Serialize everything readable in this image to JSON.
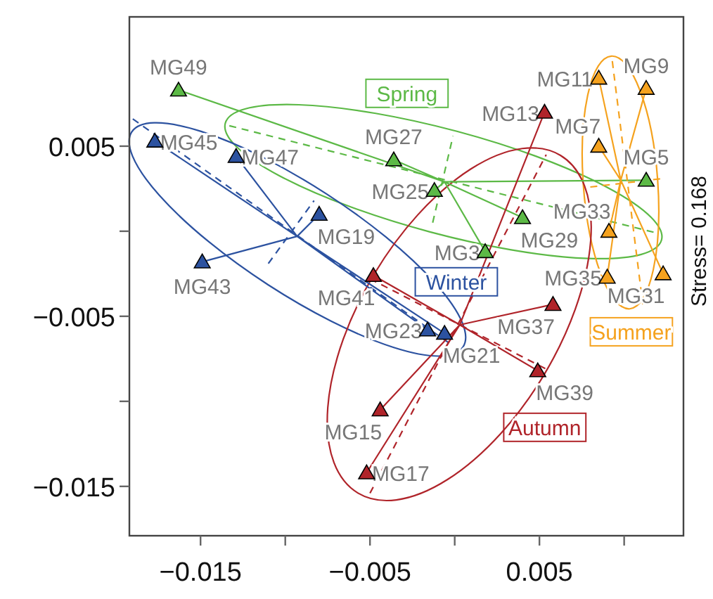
{
  "chart_data": {
    "type": "scatter",
    "legend": false,
    "grid": false,
    "xlim": [
      -0.0192,
      0.0135
    ],
    "ylim": [
      -0.0179,
      0.0126
    ],
    "xticks": [
      {
        "value": -0.015,
        "label": "−0.015"
      },
      {
        "value": -0.01,
        "label": null
      },
      {
        "value": -0.005,
        "label": "−0.005"
      },
      {
        "value": 0,
        "label": null
      },
      0.005,
      {
        "value": 0.01,
        "label": null
      }
    ],
    "yticks": [
      {
        "value": -0.015,
        "label": "−0.015"
      },
      {
        "value": -0.01,
        "label": null
      },
      {
        "value": -0.005,
        "label": "−0.005"
      },
      {
        "value": 0,
        "label": null
      },
      0.005
    ],
    "series": [
      {
        "name": "Spring",
        "marker": "triangle",
        "color": "#5cb946",
        "x": [
          -0.0163,
          -0.0036,
          -0.0012,
          0.004,
          0.0018,
          0.0113
        ],
        "values": [
          0.0083,
          0.0042,
          0.0024,
          0.0008,
          -0.0012,
          0.003
        ]
      },
      {
        "type": "line",
        "color": "#5cb946",
        "x": [
          -0.0006,
          -0.0163,
          -0.0006,
          -0.0036,
          -0.0006,
          -0.0012,
          -0.0006,
          0.004,
          -0.0006,
          0.0018,
          -0.0006,
          0.0113
        ],
        "values": [
          0.0029,
          0.0083,
          0.0029,
          0.0042,
          0.0029,
          0.0024,
          0.0029,
          0.0008,
          0.0029,
          -0.0012,
          0.0029,
          0.003
        ]
      },
      {
        "type": "line",
        "color": "#5cb946",
        "line_style": "dashed",
        "x": [
          -0.0133,
          0.0119
        ],
        "values": [
          0.0062,
          -0.0001
        ]
      },
      {
        "type": "line",
        "color": "#5cb946",
        "line_style": "dashed",
        "x": [
          -0.0013,
          -0.0001
        ],
        "values": [
          0.0005,
          0.0056
        ]
      },
      {
        "name": "Winter",
        "marker": "triangle",
        "color": "#2c52a0",
        "x": [
          -0.0177,
          -0.0129,
          -0.008,
          -0.0149,
          -0.0016,
          -0.0006
        ],
        "values": [
          0.0053,
          0.0044,
          0.001,
          -0.0018,
          -0.0058,
          -0.006
        ]
      },
      {
        "type": "line",
        "color": "#2c52a0",
        "x": [
          -0.0093,
          -0.0177,
          -0.0093,
          -0.0129,
          -0.0093,
          -0.008,
          -0.0093,
          -0.0149,
          -0.0093,
          -0.0016,
          -0.0093,
          -0.0006
        ],
        "values": [
          -0.0003,
          0.0053,
          -0.0003,
          0.0044,
          -0.0003,
          0.001,
          -0.0003,
          -0.0018,
          -0.0003,
          -0.0058,
          -0.0003,
          -0.006
        ]
      },
      {
        "type": "line",
        "color": "#2c52a0",
        "line_style": "dashed",
        "x": [
          -0.019,
          -0.0003
        ],
        "values": [
          0.0066,
          -0.0066
        ]
      },
      {
        "type": "line",
        "color": "#2c52a0",
        "line_style": "dashed",
        "x": [
          -0.011,
          -0.0083
        ],
        "values": [
          -0.0019,
          0.0018
        ]
      },
      {
        "name": "Summer",
        "marker": "triangle",
        "color": "#f5a21e",
        "x": [
          0.0085,
          0.0113,
          0.0085,
          0.0091,
          0.0123,
          0.009
        ],
        "values": [
          0.009,
          0.0084,
          0.005,
          0,
          -0.0025,
          -0.0027
        ]
      },
      {
        "type": "line",
        "color": "#f5a21e",
        "x": [
          0.0098,
          0.0085,
          0.0098,
          0.0113,
          0.0098,
          0.0085,
          0.0098,
          0.0091,
          0.0098,
          0.0123,
          0.0098,
          0.009
        ],
        "values": [
          0.003,
          0.009,
          0.003,
          0.0084,
          0.003,
          0.005,
          0.003,
          0,
          0.003,
          -0.0025,
          0.003,
          -0.0027
        ]
      },
      {
        "type": "line",
        "color": "#f5a21e",
        "line_style": "dashed",
        "x": [
          0.0093,
          0.0111
        ],
        "values": [
          0.01,
          -0.0043
        ]
      },
      {
        "type": "line",
        "color": "#f5a21e",
        "line_style": "dashed",
        "x": [
          0.008,
          0.0123
        ],
        "values": [
          0.0026,
          0.0031
        ]
      },
      {
        "name": "Autumn",
        "marker": "triangle",
        "color": "#b0242a",
        "x": [
          0.0053,
          -0.0048,
          0.0058,
          0.0049,
          -0.0044,
          -0.0052
        ],
        "values": [
          0.007,
          -0.0026,
          -0.0043,
          -0.0082,
          -0.0105,
          -0.0142
        ]
      },
      {
        "type": "line",
        "color": "#b0242a",
        "x": [
          0.0003,
          0.0053,
          0.0003,
          -0.0048,
          0.0003,
          0.0058,
          0.0003,
          0.0049,
          0.0003,
          -0.0044,
          0.0003,
          -0.0052
        ],
        "values": [
          -0.0055,
          0.007,
          -0.0055,
          -0.0026,
          -0.0055,
          -0.0043,
          -0.0055,
          -0.0082,
          -0.0055,
          -0.0105,
          -0.0055,
          -0.0142
        ]
      },
      {
        "type": "line",
        "color": "#b0242a",
        "line_style": "dashed",
        "x": [
          -0.005,
          0.0054
        ],
        "values": [
          -0.0154,
          0.0045
        ]
      },
      {
        "type": "line",
        "color": "#b0242a",
        "line_style": "dashed",
        "x": [
          -0.005,
          0.0054
        ],
        "values": [
          -0.0028,
          -0.0081
        ]
      }
    ],
    "annotations": [
      {
        "text": "MG49",
        "x": -0.0163,
        "y": 0.0083
      },
      {
        "text": "MG27",
        "x": -0.0036,
        "y": 0.0042
      },
      {
        "text": "MG25",
        "x": -0.0012,
        "y": 0.0024
      },
      {
        "text": "MG29",
        "x": 0.004,
        "y": 0.0008
      },
      {
        "text": "MG3",
        "x": 0.0018,
        "y": -0.0012
      },
      {
        "text": "MG5",
        "x": 0.0113,
        "y": 0.003
      },
      {
        "text": "MG45",
        "x": -0.0177,
        "y": 0.0053
      },
      {
        "text": "MG47",
        "x": -0.0129,
        "y": 0.0044
      },
      {
        "text": "MG19",
        "x": -0.008,
        "y": 0.001
      },
      {
        "text": "MG43",
        "x": -0.0149,
        "y": -0.0018
      },
      {
        "text": "MG23",
        "x": -0.0016,
        "y": -0.0058
      },
      {
        "text": "MG21",
        "x": -0.0006,
        "y": -0.006
      },
      {
        "text": "MG11",
        "x": 0.0085,
        "y": 0.009
      },
      {
        "text": "MG9",
        "x": 0.0113,
        "y": 0.0084
      },
      {
        "text": "MG7",
        "x": 0.0085,
        "y": 0.005
      },
      {
        "text": "MG33",
        "x": 0.0091,
        "y": 0
      },
      {
        "text": "MG31",
        "x": 0.0123,
        "y": -0.0025
      },
      {
        "text": "MG35",
        "x": 0.009,
        "y": -0.0027
      },
      {
        "text": "MG13",
        "x": 0.0053,
        "y": 0.007
      },
      {
        "text": "MG41",
        "x": -0.0048,
        "y": -0.0026
      },
      {
        "text": "MG37",
        "x": 0.0058,
        "y": -0.0043
      },
      {
        "text": "MG39",
        "x": 0.0049,
        "y": -0.0082
      },
      {
        "text": "MG15",
        "x": -0.0044,
        "y": -0.0105
      },
      {
        "text": "MG17",
        "x": -0.0052,
        "y": -0.0142
      },
      "Stress= 0.168"
    ]
  }
}
